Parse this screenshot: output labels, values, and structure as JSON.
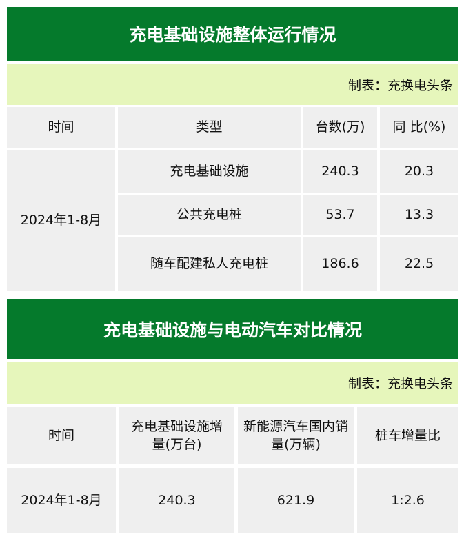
{
  "table1": {
    "title": "充电基础设施整体运行情况",
    "source": "制表：充换电头条",
    "headers": [
      "时间",
      "类型",
      "台数(万)",
      "同 比(%)"
    ],
    "period": "2024年1-8月",
    "rows": [
      {
        "type": "充电基础设施",
        "count": "240.3",
        "yoy": "20.3"
      },
      {
        "type": "公共充电桩",
        "count": "53.7",
        "yoy": "13.3"
      },
      {
        "type": "随车配建私人充电桩",
        "count": "186.6",
        "yoy": "22.5"
      }
    ]
  },
  "table2": {
    "title": "充电基础设施与电动汽车对比情况",
    "source": "制表：充换电头条",
    "headers": [
      "时间",
      "充电基础设施增量(万台)",
      "新能源汽车国内销量(万辆)",
      "桩车增量比"
    ],
    "row": {
      "period": "2024年1-8月",
      "increment": "240.3",
      "sales": "621.9",
      "ratio": "1:2.6"
    }
  },
  "colors": {
    "title_bg": "#057a2c",
    "source_bg": "#e6f6bb",
    "cell_bg": "#efefef"
  }
}
